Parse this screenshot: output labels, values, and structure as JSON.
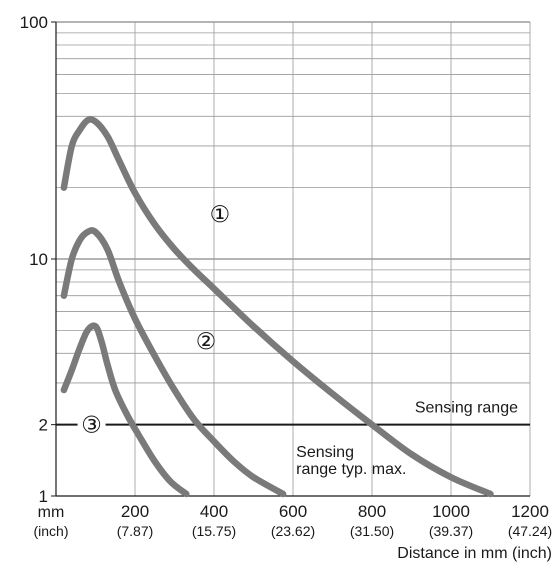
{
  "chart_data": {
    "type": "line",
    "title": "",
    "xlabel": "Distance in mm (inch)",
    "ylabel": "",
    "y_scale": "log",
    "xlim": [
      0,
      1200
    ],
    "ylim": [
      1,
      100
    ],
    "grid": true,
    "x_unit_label": "mm",
    "x_unit_label_secondary": "(inch)",
    "x_ticks": [
      {
        "value": 200,
        "label": "200",
        "sublabel": "(7.87)"
      },
      {
        "value": 400,
        "label": "400",
        "sublabel": "(15.75)"
      },
      {
        "value": 600,
        "label": "600",
        "sublabel": "(23.62)"
      },
      {
        "value": 800,
        "label": "800",
        "sublabel": "(31.50)"
      },
      {
        "value": 1000,
        "label": "1000",
        "sublabel": "(39.37)"
      },
      {
        "value": 1200,
        "label": "1200",
        "sublabel": "(47.24)"
      }
    ],
    "y_ticks": [
      {
        "value": 1,
        "label": "1"
      },
      {
        "value": 2,
        "label": "2"
      },
      {
        "value": 10,
        "label": "10"
      },
      {
        "value": 100,
        "label": "100"
      }
    ],
    "series": [
      {
        "name": "①",
        "color": "#7a7a7a",
        "x": [
          20,
          40,
          60,
          80,
          100,
          130,
          160,
          200,
          250,
          300,
          350,
          400,
          500,
          600,
          700,
          800,
          900,
          1000,
          1100
        ],
        "y": [
          20,
          30,
          35,
          38.5,
          38,
          33,
          26,
          19,
          14,
          11,
          9,
          7.5,
          5.2,
          3.7,
          2.7,
          2.0,
          1.5,
          1.2,
          1.02
        ]
      },
      {
        "name": "②",
        "color": "#7a7a7a",
        "x": [
          20,
          40,
          60,
          80,
          100,
          130,
          160,
          200,
          250,
          300,
          350,
          400,
          450,
          500,
          575
        ],
        "y": [
          7,
          10,
          12,
          13,
          13,
          11,
          8,
          5.6,
          3.9,
          2.8,
          2.1,
          1.7,
          1.4,
          1.2,
          1.02
        ]
      },
      {
        "name": "③",
        "color": "#7a7a7a",
        "x": [
          20,
          40,
          60,
          80,
          100,
          115,
          130,
          150,
          180,
          210,
          250,
          290,
          330
        ],
        "y": [
          2.8,
          3.4,
          4.2,
          5.0,
          5.2,
          4.5,
          3.6,
          2.8,
          2.2,
          1.8,
          1.4,
          1.15,
          1.02
        ]
      }
    ],
    "reference_line": {
      "y": 2,
      "label": "Sensing range",
      "color": "#1a1a1a"
    },
    "annotations": [
      {
        "text": "Sensing",
        "x": 608,
        "y": 1.46
      },
      {
        "text": "range typ. max.",
        "x": 608,
        "y": 1.24
      }
    ],
    "curve_labels": [
      {
        "text": "①",
        "x": 415,
        "y": 15.5
      },
      {
        "text": "②",
        "x": 380,
        "y": 4.5
      },
      {
        "text": "③",
        "x": 90,
        "y": 2
      }
    ]
  }
}
